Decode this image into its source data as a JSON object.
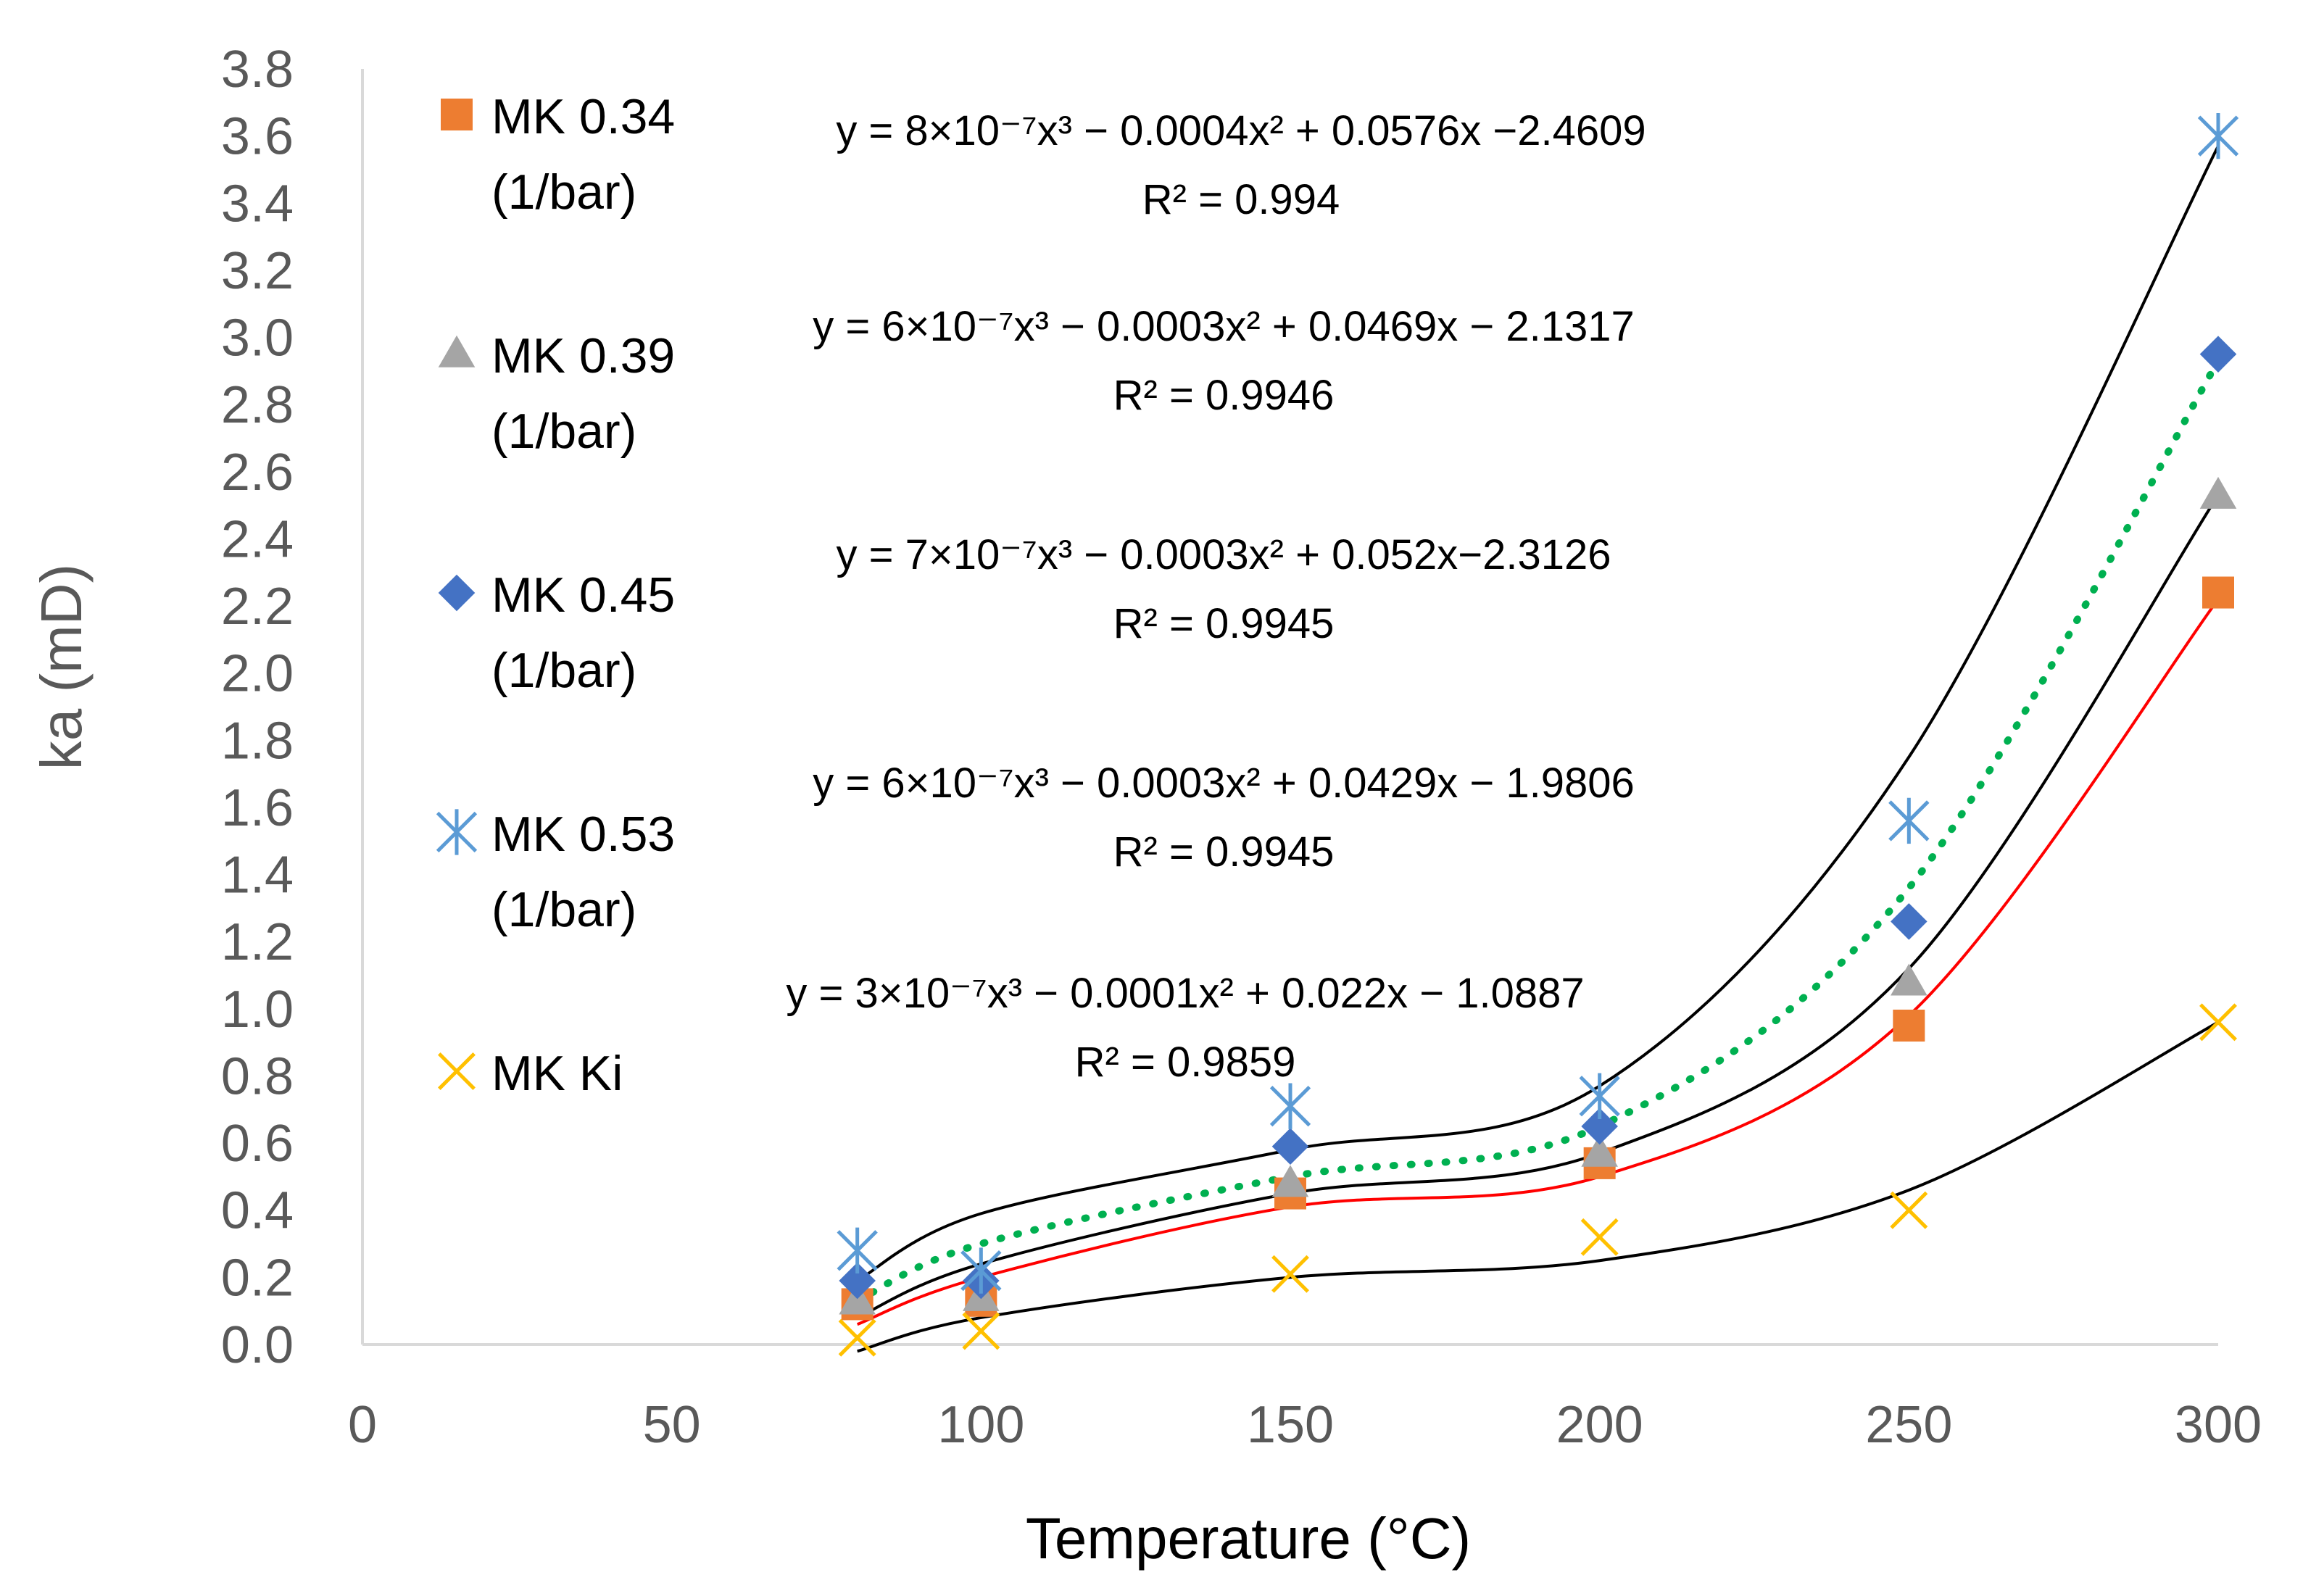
{
  "chart_data": {
    "type": "scatter",
    "title": "",
    "xlabel": "Temperature (°C)",
    "ylabel": "ka (mD)",
    "xlim": [
      0,
      300
    ],
    "ylim": [
      0,
      3.8
    ],
    "x_ticks": [
      "0",
      "50",
      "100",
      "150",
      "200",
      "250",
      "300"
    ],
    "y_ticks": [
      "0.0",
      "0.2",
      "0.4",
      "0.6",
      "0.8",
      "1.0",
      "1.2",
      "1.4",
      "1.6",
      "1.8",
      "2.0",
      "2.2",
      "2.4",
      "2.6",
      "2.8",
      "3.0",
      "3.2",
      "3.4",
      "3.6",
      "3.8"
    ],
    "grid": false,
    "legend_position": "left",
    "x": [
      80,
      100,
      150,
      200,
      250,
      300
    ],
    "series": [
      {
        "name": "MK 0.34 (1/bar)",
        "legend_line1": "MK 0.34",
        "legend_line2": "(1/bar)",
        "marker": "square",
        "color": "#ED7D31",
        "values": [
          0.12,
          0.13,
          0.45,
          0.54,
          0.95,
          2.24
        ]
      },
      {
        "name": "MK 0.39 (1/bar)",
        "legend_line1": "MK 0.39",
        "legend_line2": "(1/bar)",
        "marker": "triangle",
        "color": "#A5A5A5",
        "values": [
          0.13,
          0.14,
          0.48,
          0.57,
          1.08,
          2.53
        ]
      },
      {
        "name": "MK 0.45 (1/bar)",
        "legend_line1": "MK 0.45",
        "legend_line2": "(1/bar)",
        "marker": "diamond",
        "color": "#4472C4",
        "values": [
          0.19,
          0.19,
          0.59,
          0.65,
          1.26,
          2.95
        ]
      },
      {
        "name": "MK 0.53 (1/bar)",
        "legend_line1": "MK 0.53",
        "legend_line2": "(1/bar)",
        "marker": "asterisk",
        "color": "#5B9BD5",
        "values": [
          0.28,
          0.22,
          0.71,
          0.74,
          1.56,
          3.6
        ]
      },
      {
        "name": "MK Ki",
        "legend_line1": "MK Ki",
        "legend_line2": "",
        "marker": "x",
        "color": "#FFC000",
        "values": [
          0.02,
          0.04,
          0.21,
          0.32,
          0.4,
          0.96
        ]
      }
    ],
    "trendlines": [
      {
        "equation": "y = 8×10⁻⁷x³ − 0.0004x² + 0.0576x −2.4609",
        "r2": "R² = 0.994",
        "color": "#000000",
        "style": "solid",
        "fit": [
          0.19,
          0.39,
          0.58,
          0.77,
          1.75,
          3.57
        ]
      },
      {
        "equation": "y = 6×10⁻⁷x³ − 0.0003x² + 0.0469x − 2.1317",
        "r2": "R² = 0.9946",
        "color": "#00B050",
        "style": "dotted",
        "fit": [
          0.13,
          0.3,
          0.5,
          0.65,
          1.36,
          2.93
        ]
      },
      {
        "equation": "y = 7×10⁻⁷x³ − 0.0003x² + 0.052x−2.3126",
        "r2": "R² = 0.9945",
        "color": "#000000",
        "style": "solid",
        "fit": [
          0.08,
          0.24,
          0.45,
          0.57,
          1.12,
          2.53
        ]
      },
      {
        "equation": "y = 6×10⁻⁷x³ − 0.0003x² + 0.0429x − 1.9806",
        "r2": "R² = 0.9945",
        "color": "#FF0000",
        "style": "solid",
        "fit": [
          0.06,
          0.2,
          0.41,
          0.5,
          0.98,
          2.22
        ]
      },
      {
        "equation": "y = 3×10⁻⁷x³ − 0.0001x² + 0.022x − 1.0887",
        "r2": "R² = 0.9859",
        "color": "#000000",
        "style": "solid",
        "fit": [
          -0.02,
          0.08,
          0.2,
          0.25,
          0.46,
          0.96
        ]
      }
    ]
  }
}
